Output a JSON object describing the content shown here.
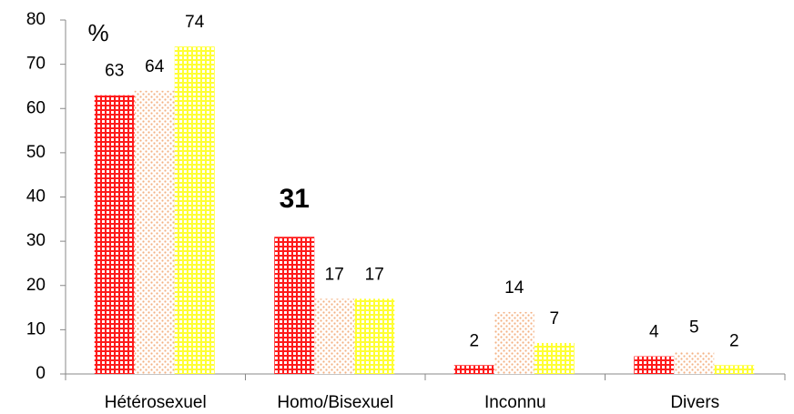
{
  "chart_data": {
    "type": "bar",
    "y_label": "%",
    "categories": [
      "Hétérosexuel",
      "Homo/Bisexuel",
      "Inconnu",
      "Divers"
    ],
    "series": [
      {
        "color": "#ff1a1a",
        "values": [
          63,
          31,
          2,
          4
        ]
      },
      {
        "color": "#f4b183",
        "values": [
          64,
          17,
          14,
          5
        ]
      },
      {
        "color": "#ffff33",
        "values": [
          74,
          17,
          7,
          2
        ]
      }
    ],
    "ylim": [
      0,
      80
    ],
    "yticks": [
      0,
      10,
      20,
      30,
      40,
      50,
      60,
      70,
      80
    ],
    "grid": false
  }
}
